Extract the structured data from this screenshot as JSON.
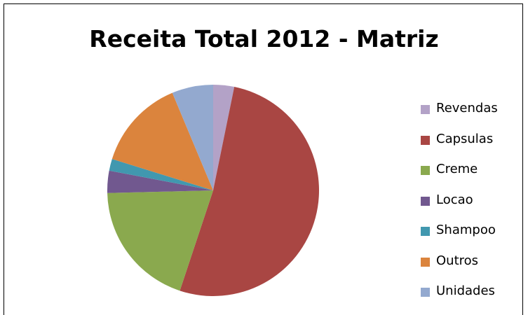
{
  "chart_data": {
    "type": "pie",
    "title": "Receita Total 2012 - Matriz",
    "legend_position": "right",
    "slices": [
      {
        "label": "Revendas",
        "value": 3.2,
        "color": "#b3a2c7"
      },
      {
        "label": "Capsulas",
        "value": 51.9,
        "color": "#a94643"
      },
      {
        "label": "Creme",
        "value": 19.5,
        "color": "#8aa94e"
      },
      {
        "label": "Locao",
        "value": 3.4,
        "color": "#71588f"
      },
      {
        "label": "Shampoo",
        "value": 1.8,
        "color": "#4198af"
      },
      {
        "label": "Outros",
        "value": 13.9,
        "color": "#db843d"
      },
      {
        "label": "Unidades",
        "value": 6.3,
        "color": "#93a9cf"
      }
    ]
  }
}
